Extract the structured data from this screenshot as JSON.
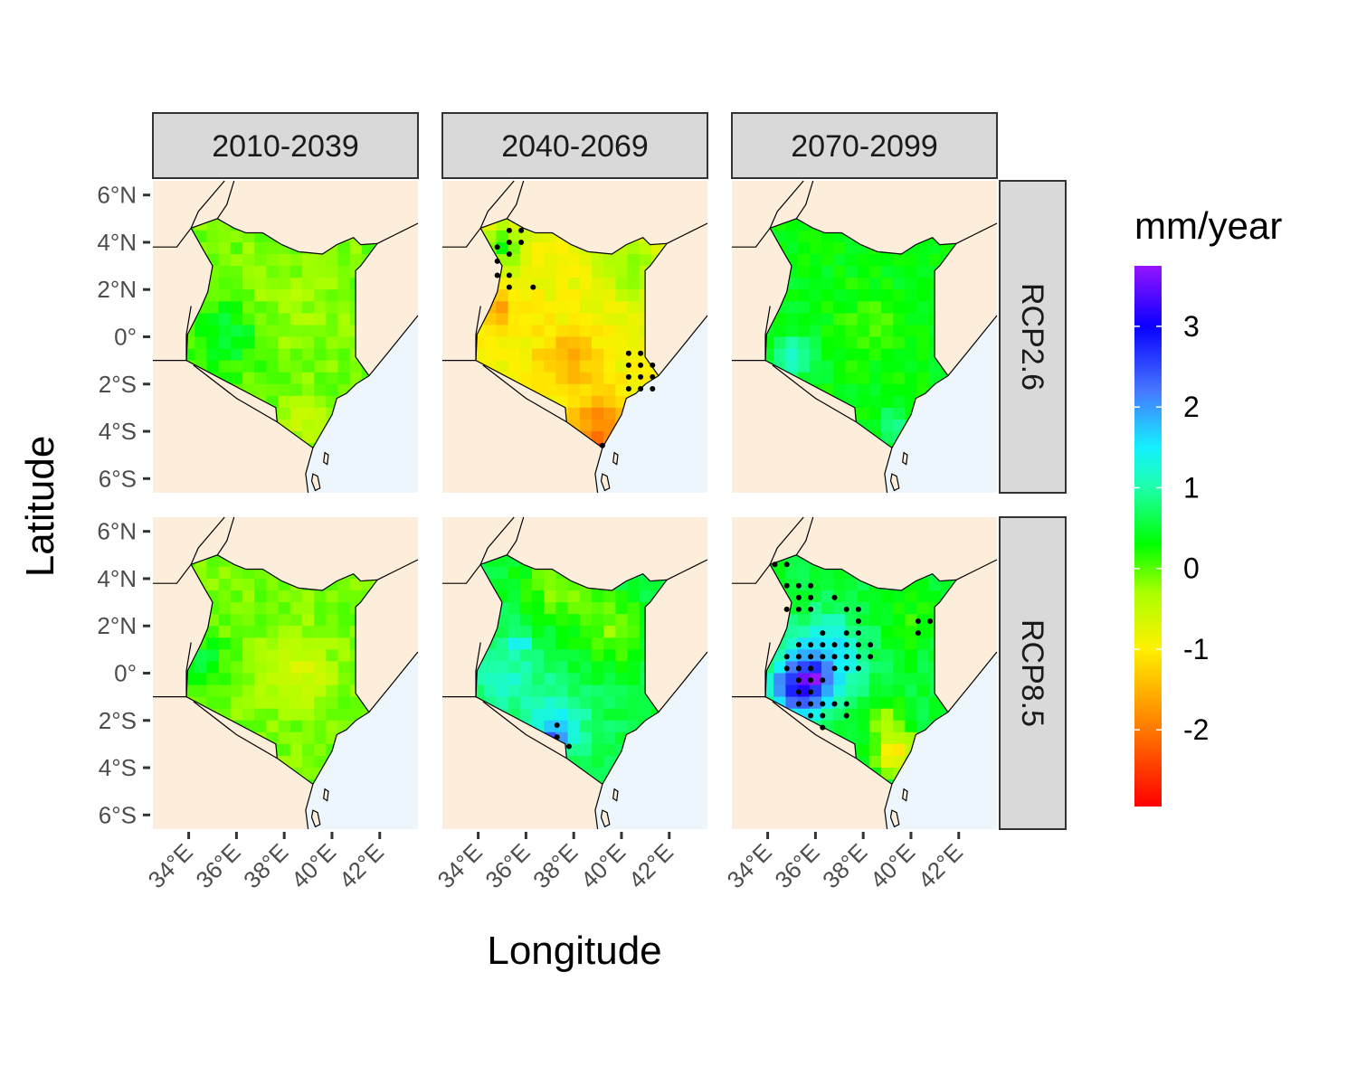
{
  "chart_data": {
    "type": "heatmap",
    "title": "",
    "xlabel": "Longitude",
    "ylabel": "Latitude",
    "x_ticks": [
      "34°E",
      "36°E",
      "38°E",
      "40°E",
      "42°E"
    ],
    "x_tick_values": [
      34,
      36,
      38,
      40,
      42
    ],
    "y_ticks": [
      "6°N",
      "4°N",
      "2°N",
      "0°",
      "2°S",
      "4°S",
      "6°S"
    ],
    "y_tick_values": [
      6,
      4,
      2,
      0,
      -2,
      -4,
      -6
    ],
    "xlim": [
      32.5,
      43.6
    ],
    "ylim": [
      -6.6,
      6.6
    ],
    "columns": [
      "2010-2039",
      "2040-2069",
      "2070-2099"
    ],
    "rows": [
      "RCP2.6",
      "RCP8.5"
    ],
    "legend": {
      "title": "mm/year",
      "ticks": [
        "3",
        "2",
        "1",
        "0",
        "-1",
        "-2"
      ],
      "tick_values": [
        3,
        2,
        1,
        0,
        -1,
        -2
      ],
      "range": [
        -2.95,
        3.75
      ],
      "position": "right"
    },
    "colors": {
      "land": "#fdeedb",
      "ocean": "#eef6fd",
      "strip_fill": "#d9d9d9",
      "strip_border": "#333333",
      "border_line": "#000000",
      "significance_dot": "#000000"
    },
    "panels": [
      {
        "column": "2010-2039",
        "row": "RCP2.6",
        "mean": -0.1,
        "regions": [
          {
            "lon": 35.6,
            "lat": 0.0,
            "value": 0.55,
            "spread": 1.5
          },
          {
            "lon": 38.2,
            "lat": 1.5,
            "value": -0.3,
            "spread": 1.8
          },
          {
            "lon": 38.8,
            "lat": -3.6,
            "value": -0.6,
            "spread": 0.8
          }
        ],
        "significant": []
      },
      {
        "column": "2040-2069",
        "row": "RCP2.6",
        "mean": -0.9,
        "regions": [
          {
            "lon": 35.0,
            "lat": 3.8,
            "value": 0.25,
            "spread": 0.9
          },
          {
            "lon": 34.8,
            "lat": 1.3,
            "value": -1.6,
            "spread": 0.8
          },
          {
            "lon": 37.7,
            "lat": -1.0,
            "value": -1.5,
            "spread": 1.3
          },
          {
            "lon": 39.0,
            "lat": -3.8,
            "value": -1.9,
            "spread": 1.2
          },
          {
            "lon": 39.2,
            "lat": -4.6,
            "value": -2.8,
            "spread": 0.3
          },
          {
            "lon": 40.4,
            "lat": 3.0,
            "value": -0.2,
            "spread": 1.5
          }
        ],
        "significant": [
          [
            34.8,
            3.8
          ],
          [
            34.8,
            3.2
          ],
          [
            34.8,
            2.6
          ],
          [
            35.3,
            4.5
          ],
          [
            35.8,
            4.5
          ],
          [
            35.3,
            4.0
          ],
          [
            35.8,
            4.0
          ],
          [
            35.3,
            3.5
          ],
          [
            35.3,
            2.6
          ],
          [
            35.3,
            2.1
          ],
          [
            36.3,
            2.1
          ],
          [
            40.3,
            -0.7
          ],
          [
            40.8,
            -0.7
          ],
          [
            40.3,
            -1.2
          ],
          [
            40.8,
            -1.2
          ],
          [
            41.3,
            -1.2
          ],
          [
            40.3,
            -1.7
          ],
          [
            40.8,
            -1.7
          ],
          [
            41.3,
            -1.7
          ],
          [
            40.3,
            -2.2
          ],
          [
            40.8,
            -2.2
          ],
          [
            41.3,
            -2.2
          ],
          [
            39.2,
            -4.6
          ]
        ]
      },
      {
        "column": "2070-2099",
        "row": "RCP2.6",
        "mean": 0.35,
        "regions": [
          {
            "lon": 35.0,
            "lat": -0.9,
            "value": 1.1,
            "spread": 1.0
          },
          {
            "lon": 39.4,
            "lat": -3.7,
            "value": 0.9,
            "spread": 0.7
          },
          {
            "lon": 38.3,
            "lat": 0.4,
            "value": 0.05,
            "spread": 1.5
          }
        ],
        "significant": []
      },
      {
        "column": "2010-2039",
        "row": "RCP8.5",
        "mean": -0.1,
        "regions": [
          {
            "lon": 38.6,
            "lat": 0.0,
            "value": -0.6,
            "spread": 1.5
          },
          {
            "lon": 34.6,
            "lat": 0.5,
            "value": 0.5,
            "spread": 1.0
          }
        ],
        "significant": []
      },
      {
        "column": "2040-2069",
        "row": "RCP8.5",
        "mean": 0.6,
        "regions": [
          {
            "lon": 35.2,
            "lat": -0.2,
            "value": 1.1,
            "spread": 1.6
          },
          {
            "lon": 37.3,
            "lat": -2.2,
            "value": 1.6,
            "spread": 1.1
          },
          {
            "lon": 37.2,
            "lat": -2.6,
            "value": 2.6,
            "spread": 0.3
          },
          {
            "lon": 35.8,
            "lat": 1.2,
            "value": 1.8,
            "spread": 0.3
          },
          {
            "lon": 37.4,
            "lat": 3.8,
            "value": -0.2,
            "spread": 1.6
          },
          {
            "lon": 39.6,
            "lat": 1.8,
            "value": -0.1,
            "spread": 1.5
          }
        ],
        "significant": [
          [
            37.3,
            -2.2
          ],
          [
            37.3,
            -2.7
          ],
          [
            37.8,
            -3.1
          ]
        ]
      },
      {
        "column": "2070-2099",
        "row": "RCP8.5",
        "mean": 0.5,
        "regions": [
          {
            "lon": 35.4,
            "lat": -0.6,
            "value": 2.9,
            "spread": 1.2
          },
          {
            "lon": 35.8,
            "lat": -0.1,
            "value": 3.7,
            "spread": 0.25
          },
          {
            "lon": 36.5,
            "lat": 0.8,
            "value": 1.6,
            "spread": 1.6
          },
          {
            "lon": 39.4,
            "lat": -3.4,
            "value": -1.1,
            "spread": 0.9
          },
          {
            "lon": 38.9,
            "lat": -1.9,
            "value": -0.3,
            "spread": 0.7
          },
          {
            "lon": 40.0,
            "lat": 2.2,
            "value": 0.2,
            "spread": 1.3
          }
        ],
        "significant": [
          [
            34.3,
            4.6
          ],
          [
            34.8,
            4.6
          ],
          [
            34.8,
            3.7
          ],
          [
            35.3,
            3.7
          ],
          [
            35.8,
            3.7
          ],
          [
            35.3,
            3.2
          ],
          [
            35.8,
            3.2
          ],
          [
            36.8,
            3.2
          ],
          [
            34.8,
            2.7
          ],
          [
            35.3,
            2.7
          ],
          [
            35.8,
            2.7
          ],
          [
            37.3,
            2.7
          ],
          [
            37.8,
            2.7
          ],
          [
            37.8,
            2.2
          ],
          [
            36.3,
            1.7
          ],
          [
            37.3,
            1.7
          ],
          [
            37.8,
            1.7
          ],
          [
            35.3,
            1.2
          ],
          [
            35.8,
            1.2
          ],
          [
            36.3,
            1.2
          ],
          [
            36.8,
            1.2
          ],
          [
            37.3,
            1.2
          ],
          [
            37.8,
            1.2
          ],
          [
            38.3,
            1.2
          ],
          [
            34.8,
            0.7
          ],
          [
            35.3,
            0.7
          ],
          [
            35.8,
            0.7
          ],
          [
            36.3,
            0.7
          ],
          [
            36.8,
            0.7
          ],
          [
            37.3,
            0.7
          ],
          [
            37.8,
            0.7
          ],
          [
            38.3,
            0.7
          ],
          [
            34.8,
            0.2
          ],
          [
            35.3,
            0.2
          ],
          [
            35.8,
            0.2
          ],
          [
            36.8,
            0.2
          ],
          [
            37.3,
            0.2
          ],
          [
            37.8,
            0.2
          ],
          [
            35.3,
            -0.3
          ],
          [
            35.8,
            -0.3
          ],
          [
            36.3,
            -0.3
          ],
          [
            35.3,
            -0.8
          ],
          [
            35.8,
            -0.8
          ],
          [
            35.3,
            -1.3
          ],
          [
            35.8,
            -1.3
          ],
          [
            36.3,
            -1.3
          ],
          [
            36.8,
            -1.3
          ],
          [
            37.3,
            -1.3
          ],
          [
            35.8,
            -1.8
          ],
          [
            36.3,
            -1.8
          ],
          [
            37.3,
            -1.8
          ],
          [
            36.3,
            -2.3
          ],
          [
            40.3,
            2.2
          ],
          [
            40.8,
            2.2
          ],
          [
            40.3,
            1.7
          ]
        ]
      }
    ]
  }
}
